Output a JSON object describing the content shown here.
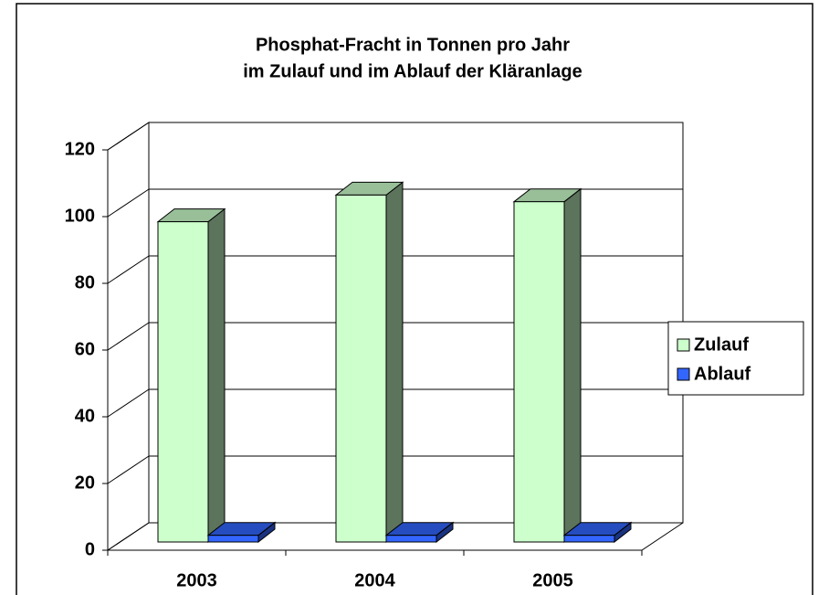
{
  "chart_data": {
    "type": "bar3d",
    "title": [
      "Phosphat-Fracht in Tonnen pro Jahr",
      "im Zulauf und im Ablauf der Kläranlage"
    ],
    "categories": [
      "2003",
      "2004",
      "2005"
    ],
    "series": [
      {
        "name": "Zulauf",
        "color": "#ccffcc",
        "values": [
          96,
          104,
          102
        ]
      },
      {
        "name": "Ablauf",
        "color": "#3366ff",
        "values": [
          2,
          2,
          2
        ]
      }
    ],
    "ylim": [
      0,
      120
    ],
    "yticks": [
      0,
      20,
      40,
      60,
      80,
      100,
      120
    ],
    "grid": true,
    "legend": "right"
  }
}
